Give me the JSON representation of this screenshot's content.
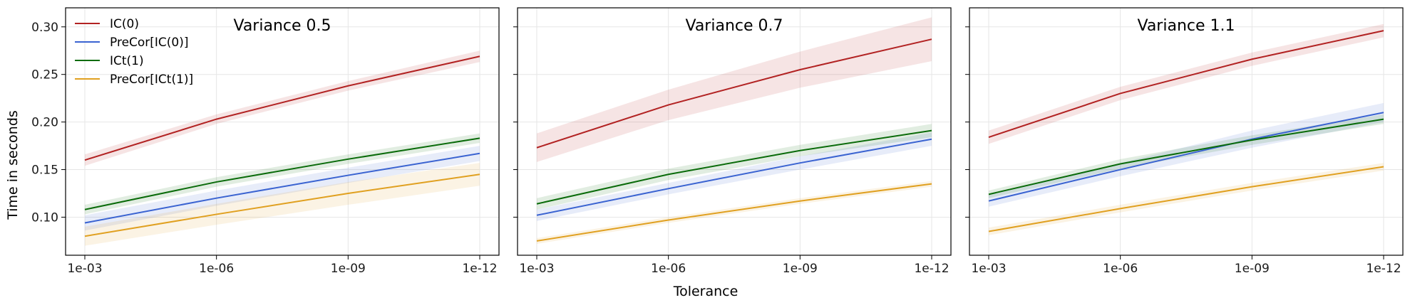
{
  "chart_data": {
    "type": "line",
    "xlabel": "Tolerance",
    "ylabel": "Time in seconds",
    "categories": [
      "1e-03",
      "1e-06",
      "1e-09",
      "1e-12"
    ],
    "ylim": [
      0.06,
      0.32
    ],
    "yticks": [
      "0.10",
      "0.15",
      "0.20",
      "0.25",
      "0.30"
    ],
    "grid": true,
    "legend_position": "top-left",
    "colors": {
      "IC(0)": "#b22222",
      "PreCor[IC(0)]": "#3a63d1",
      "ICt(1)": "#0a6b0a",
      "PreCor[ICt(1)]": "#e0a020"
    },
    "panels": [
      {
        "title": "Variance 0.5",
        "series": [
          {
            "name": "IC(0)",
            "values": [
              0.16,
              0.203,
              0.238,
              0.269
            ],
            "lower": [
              0.154,
              0.198,
              0.233,
              0.263
            ],
            "upper": [
              0.166,
              0.208,
              0.243,
              0.275
            ]
          },
          {
            "name": "PreCor[IC(0)]",
            "values": [
              0.094,
              0.12,
              0.144,
              0.167
            ],
            "lower": [
              0.086,
              0.112,
              0.136,
              0.159
            ],
            "upper": [
              0.102,
              0.128,
              0.152,
              0.175
            ]
          },
          {
            "name": "ICt(1)",
            "values": [
              0.108,
              0.137,
              0.161,
              0.183
            ],
            "lower": [
              0.103,
              0.132,
              0.156,
              0.178
            ],
            "upper": [
              0.113,
              0.142,
              0.166,
              0.188
            ]
          },
          {
            "name": "PreCor[ICt(1)]",
            "values": [
              0.08,
              0.103,
              0.125,
              0.145
            ],
            "lower": [
              0.07,
              0.092,
              0.113,
              0.133
            ],
            "upper": [
              0.09,
              0.114,
              0.137,
              0.157
            ]
          }
        ]
      },
      {
        "title": "Variance 0.7",
        "series": [
          {
            "name": "IC(0)",
            "values": [
              0.173,
              0.218,
              0.255,
              0.287
            ],
            "lower": [
              0.158,
              0.202,
              0.236,
              0.264
            ],
            "upper": [
              0.188,
              0.234,
              0.274,
              0.31
            ]
          },
          {
            "name": "PreCor[IC(0)]",
            "values": [
              0.102,
              0.13,
              0.157,
              0.182
            ],
            "lower": [
              0.096,
              0.124,
              0.15,
              0.175
            ],
            "upper": [
              0.108,
              0.136,
              0.164,
              0.189
            ]
          },
          {
            "name": "ICt(1)",
            "values": [
              0.114,
              0.145,
              0.17,
              0.191
            ],
            "lower": [
              0.108,
              0.139,
              0.164,
              0.184
            ],
            "upper": [
              0.12,
              0.151,
              0.176,
              0.198
            ]
          },
          {
            "name": "PreCor[ICt(1)]",
            "values": [
              0.075,
              0.097,
              0.117,
              0.135
            ],
            "lower": [
              0.072,
              0.094,
              0.114,
              0.132
            ],
            "upper": [
              0.078,
              0.1,
              0.12,
              0.138
            ]
          }
        ]
      },
      {
        "title": "Variance 1.1",
        "series": [
          {
            "name": "IC(0)",
            "values": [
              0.184,
              0.23,
              0.266,
              0.296
            ],
            "lower": [
              0.177,
              0.223,
              0.259,
              0.289
            ],
            "upper": [
              0.191,
              0.237,
              0.273,
              0.303
            ]
          },
          {
            "name": "PreCor[IC(0)]",
            "values": [
              0.117,
              0.15,
              0.182,
              0.21
            ],
            "lower": [
              0.111,
              0.143,
              0.173,
              0.2
            ],
            "upper": [
              0.123,
              0.157,
              0.191,
              0.22
            ]
          },
          {
            "name": "ICt(1)",
            "values": [
              0.124,
              0.156,
              0.181,
              0.203
            ],
            "lower": [
              0.12,
              0.151,
              0.176,
              0.198
            ],
            "upper": [
              0.128,
              0.161,
              0.186,
              0.208
            ]
          },
          {
            "name": "PreCor[ICt(1)]",
            "values": [
              0.085,
              0.109,
              0.132,
              0.153
            ],
            "lower": [
              0.081,
              0.105,
              0.128,
              0.149
            ],
            "upper": [
              0.089,
              0.113,
              0.136,
              0.157
            ]
          }
        ]
      }
    ]
  }
}
